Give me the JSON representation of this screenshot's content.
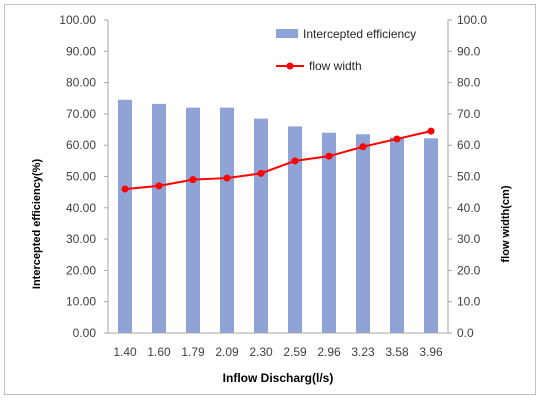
{
  "chart_data": {
    "type": "bar",
    "title": "",
    "xlabel": "Inflow Discharg(l/s)",
    "ylabel": "Intercepted efficiency(%)",
    "y2label": "flow width(cm)",
    "categories": [
      "1.40",
      "1.60",
      "1.79",
      "2.09",
      "2.30",
      "2.59",
      "2.96",
      "3.23",
      "3.58",
      "3.96"
    ],
    "ylim": [
      0,
      100
    ],
    "y2lim": [
      0,
      100
    ],
    "yticks": [
      "0.00",
      "10.00",
      "20.00",
      "30.00",
      "40.00",
      "50.00",
      "60.00",
      "70.00",
      "80.00",
      "90.00",
      "100.00"
    ],
    "y2ticks": [
      "0.0",
      "10.0",
      "20.0",
      "30.0",
      "40.0",
      "50.0",
      "60.0",
      "70.0",
      "80.0",
      "90.0",
      "100.0"
    ],
    "grid": false,
    "legend_position": "top-right",
    "series": [
      {
        "name": "Intercepted efficiency",
        "type": "bar",
        "axis": "left",
        "color": "#8fa3d6",
        "values": [
          74.5,
          73.2,
          72.0,
          72.0,
          68.5,
          66.0,
          64.0,
          63.5,
          62.5,
          62.2
        ]
      },
      {
        "name": "flow width",
        "type": "line",
        "axis": "right",
        "color": "#ff0000",
        "values": [
          46.0,
          47.0,
          49.0,
          49.5,
          51.0,
          55.0,
          56.5,
          59.5,
          62.0,
          64.5
        ]
      }
    ]
  }
}
